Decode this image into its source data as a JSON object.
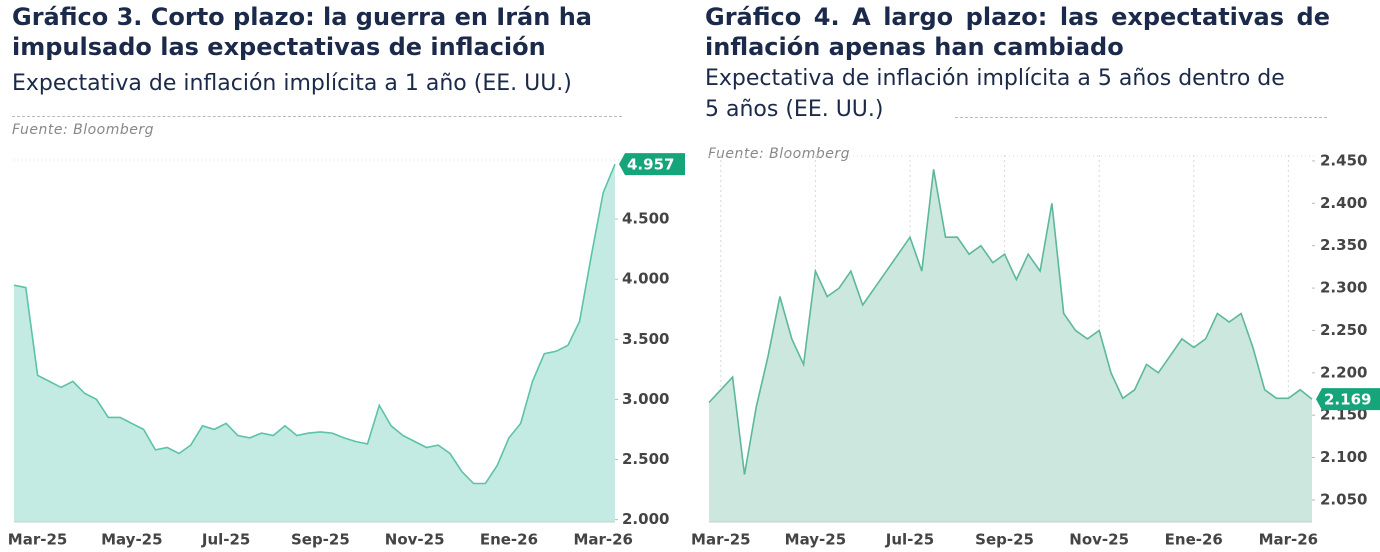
{
  "chart_data": [
    {
      "type": "area",
      "title": "Gráfico 3. Corto plazo: la guerra en Irán ha impulsado las expectativas de inflación",
      "subtitle": "Expectativa de inflación implícita a 1 año (EE. UU.)",
      "source": "Fuente:  Bloomberg",
      "categories": [
        null,
        null,
        "Mar-25",
        null,
        null,
        null,
        null,
        null,
        null,
        null,
        "May-25",
        null,
        null,
        null,
        null,
        null,
        null,
        null,
        "Jul-25",
        null,
        null,
        null,
        null,
        null,
        null,
        null,
        "Sep-25",
        null,
        null,
        null,
        null,
        null,
        null,
        null,
        "Nov-25",
        null,
        null,
        null,
        null,
        null,
        null,
        null,
        "Ene-26",
        null,
        null,
        null,
        null,
        null,
        null,
        null,
        "Mar-26",
        null
      ],
      "values": [
        3.95,
        3.93,
        3.2,
        3.15,
        3.1,
        3.15,
        3.05,
        3.0,
        2.85,
        2.85,
        2.8,
        2.75,
        2.58,
        2.6,
        2.55,
        2.62,
        2.78,
        2.75,
        2.8,
        2.7,
        2.68,
        2.72,
        2.7,
        2.78,
        2.7,
        2.72,
        2.73,
        2.72,
        2.68,
        2.65,
        2.63,
        2.95,
        2.78,
        2.7,
        2.65,
        2.6,
        2.62,
        2.55,
        2.4,
        2.3,
        2.3,
        2.45,
        2.68,
        2.8,
        3.15,
        3.38,
        3.4,
        3.45,
        3.65,
        4.2,
        4.72,
        4.957
      ],
      "color": "#5cc3a6",
      "fill_color": "#c4ebe3",
      "label_color": "#16a47a",
      "ylim": [
        1.98,
        5.0
      ],
      "yticks": [
        {
          "value": 2,
          "label": "2.000"
        },
        {
          "value": 2.5,
          "label": "2.500"
        },
        {
          "value": 3,
          "label": "3.000"
        },
        {
          "value": 3.5,
          "label": "3.500"
        },
        {
          "value": 4,
          "label": "4.000"
        },
        {
          "value": 4.5,
          "label": "4.500"
        }
      ],
      "grid": false
    },
    {
      "type": "area",
      "title": "Gráfico 4. A largo plazo: las expectativas de inflación apenas han cambiado",
      "subtitle": "Expectativa de inflación implícita a 5 años dentro de 5 años (EE. UU.)",
      "source": "Fuente:  Bloomberg",
      "categories": [
        null,
        "Mar-25",
        null,
        null,
        null,
        null,
        null,
        null,
        null,
        "May-25",
        null,
        null,
        null,
        null,
        null,
        null,
        null,
        "Jul-25",
        null,
        null,
        null,
        null,
        null,
        null,
        null,
        "Sep-25",
        null,
        null,
        null,
        null,
        null,
        null,
        null,
        "Nov-25",
        null,
        null,
        null,
        null,
        null,
        null,
        null,
        "Ene-26",
        null,
        null,
        null,
        null,
        null,
        null,
        null,
        "Mar-26",
        null,
        null
      ],
      "values": [
        2.165,
        2.18,
        2.195,
        2.08,
        2.16,
        2.22,
        2.29,
        2.24,
        2.21,
        2.32,
        2.29,
        2.3,
        2.32,
        2.28,
        2.3,
        2.32,
        2.34,
        2.36,
        2.32,
        2.44,
        2.36,
        2.36,
        2.34,
        2.35,
        2.33,
        2.34,
        2.31,
        2.34,
        2.32,
        2.4,
        2.27,
        2.25,
        2.24,
        2.25,
        2.2,
        2.17,
        2.18,
        2.21,
        2.2,
        2.22,
        2.24,
        2.23,
        2.24,
        2.27,
        2.26,
        2.27,
        2.23,
        2.18,
        2.17,
        2.17,
        2.18,
        2.169
      ],
      "color": "#5cb89c",
      "fill_color": "#cbe7de",
      "label_color": "#16a47a",
      "ylim": [
        2.024,
        2.457
      ],
      "yticks": [
        {
          "value": 2.05,
          "label": "2.050"
        },
        {
          "value": 2.1,
          "label": "2.100"
        },
        {
          "value": 2.15,
          "label": "2.150"
        },
        {
          "value": 2.2,
          "label": "2.200"
        },
        {
          "value": 2.25,
          "label": "2.250"
        },
        {
          "value": 2.3,
          "label": "2.300"
        },
        {
          "value": 2.35,
          "label": "2.350"
        },
        {
          "value": 2.4,
          "label": "2.400"
        },
        {
          "value": 2.45,
          "label": "2.450"
        }
      ],
      "grid": true
    }
  ]
}
